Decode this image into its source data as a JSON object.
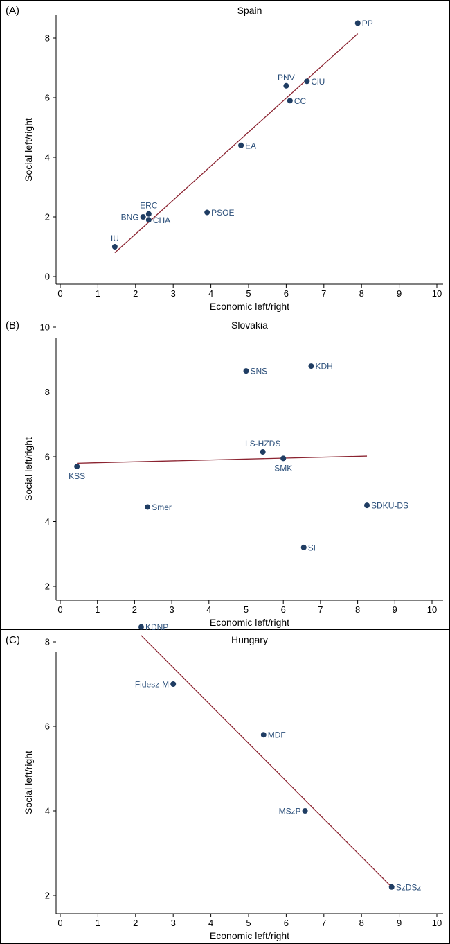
{
  "colors": {
    "point": "#1f3d63",
    "label": "#2b4f7a",
    "fit_line": "#8b2330",
    "axis": "#000000",
    "frame": "#000000"
  },
  "chart_data": [
    {
      "type": "scatter",
      "panel_label": "(A)",
      "title": "Spain",
      "xlabel": "Economic left/right",
      "ylabel": "Social left/right",
      "xlim": [
        0,
        10
      ],
      "ylim": [
        0,
        8.5
      ],
      "xticks": [
        0,
        1,
        2,
        3,
        4,
        5,
        6,
        7,
        8,
        9,
        10
      ],
      "yticks": [
        0,
        2,
        4,
        6,
        8
      ],
      "points": [
        {
          "label": "PP",
          "x": 7.9,
          "y": 8.5,
          "label_pos": "right"
        },
        {
          "label": "PNV",
          "x": 6.0,
          "y": 6.4,
          "label_pos": "top"
        },
        {
          "label": "CiU",
          "x": 6.55,
          "y": 6.55,
          "label_pos": "right"
        },
        {
          "label": "CC",
          "x": 6.1,
          "y": 5.9,
          "label_pos": "right"
        },
        {
          "label": "EA",
          "x": 4.8,
          "y": 4.4,
          "label_pos": "right"
        },
        {
          "label": "PSOE",
          "x": 3.9,
          "y": 2.15,
          "label_pos": "right"
        },
        {
          "label": "ERC",
          "x": 2.35,
          "y": 2.1,
          "label_pos": "top"
        },
        {
          "label": "BNG",
          "x": 2.2,
          "y": 2.0,
          "label_pos": "left"
        },
        {
          "label": "CHA",
          "x": 2.35,
          "y": 1.9,
          "label_pos": "right"
        },
        {
          "label": "IU",
          "x": 1.45,
          "y": 1.0,
          "label_pos": "top"
        }
      ],
      "fit_line": {
        "x": [
          1.45,
          7.9
        ],
        "y": [
          0.8,
          8.15
        ]
      }
    },
    {
      "type": "scatter",
      "panel_label": "(B)",
      "title": "Slovakia",
      "xlabel": "Economic left/right",
      "ylabel": "Social left/right",
      "xlim": [
        0,
        10
      ],
      "ylim": [
        2,
        10
      ],
      "xticks": [
        0,
        1,
        2,
        3,
        4,
        5,
        6,
        7,
        8,
        9,
        10
      ],
      "yticks": [
        2,
        4,
        6,
        8,
        10
      ],
      "points": [
        {
          "label": "SNS",
          "x": 5.0,
          "y": 8.65,
          "label_pos": "right"
        },
        {
          "label": "KDH",
          "x": 6.75,
          "y": 8.8,
          "label_pos": "right"
        },
        {
          "label": "LS-HZDS",
          "x": 5.45,
          "y": 6.15,
          "label_pos": "top"
        },
        {
          "label": "SMK",
          "x": 6.0,
          "y": 5.95,
          "label_pos": "bottom"
        },
        {
          "label": "KSS",
          "x": 0.45,
          "y": 5.7,
          "label_pos": "bottom"
        },
        {
          "label": "Smer",
          "x": 2.35,
          "y": 4.45,
          "label_pos": "right"
        },
        {
          "label": "SDKU-DS",
          "x": 8.25,
          "y": 4.5,
          "label_pos": "right"
        },
        {
          "label": "SF",
          "x": 6.55,
          "y": 3.2,
          "label_pos": "right"
        }
      ],
      "fit_line": {
        "x": [
          0.45,
          8.25
        ],
        "y": [
          5.8,
          6.02
        ]
      }
    },
    {
      "type": "scatter",
      "panel_label": "(C)",
      "title": "Hungary",
      "xlabel": "Economic left/right",
      "ylabel": "Social left/right",
      "xlim": [
        0,
        10
      ],
      "ylim": [
        2,
        8.4
      ],
      "xticks": [
        0,
        1,
        2,
        3,
        4,
        5,
        6,
        7,
        8,
        9,
        10
      ],
      "yticks": [
        2,
        4,
        6,
        8
      ],
      "points": [
        {
          "label": "KDNP",
          "x": 2.15,
          "y": 8.35,
          "label_pos": "right"
        },
        {
          "label": "Fidesz-M",
          "x": 3.0,
          "y": 7.0,
          "label_pos": "left"
        },
        {
          "label": "MDF",
          "x": 5.4,
          "y": 5.8,
          "label_pos": "right"
        },
        {
          "label": "MSzP",
          "x": 6.5,
          "y": 4.0,
          "label_pos": "left"
        },
        {
          "label": "SzDSz",
          "x": 8.8,
          "y": 2.2,
          "label_pos": "right"
        }
      ],
      "fit_line": {
        "x": [
          2.15,
          8.8
        ],
        "y": [
          8.15,
          2.2
        ]
      }
    }
  ]
}
